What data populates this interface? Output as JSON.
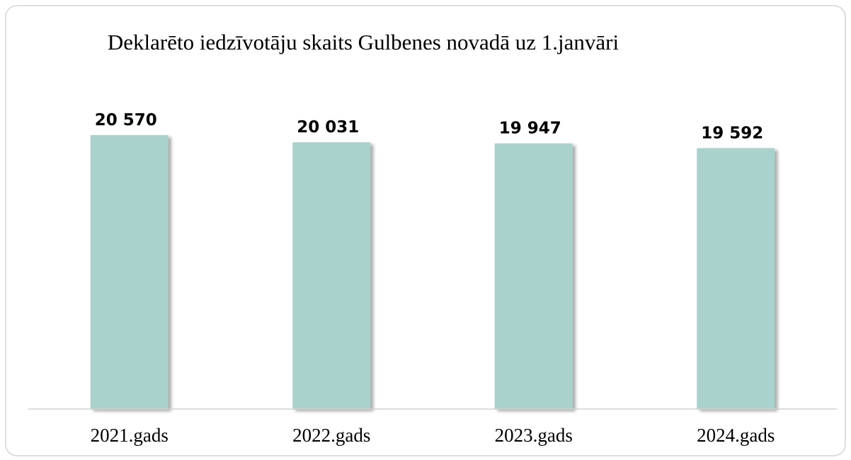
{
  "chart_data": {
    "type": "bar",
    "title": "Deklarēto iedzīvotāju skaits Gulbenes novadā uz 1.janvāri",
    "categories": [
      "2021.gads",
      "2022.gads",
      "2023.gads",
      "2024.gads"
    ],
    "values": [
      20570,
      20031,
      19947,
      19592
    ],
    "value_labels": [
      "20 570",
      "20 031",
      "19 947",
      "19 592"
    ],
    "color": "#a9d2cd",
    "ylim": [
      0,
      22000
    ]
  }
}
